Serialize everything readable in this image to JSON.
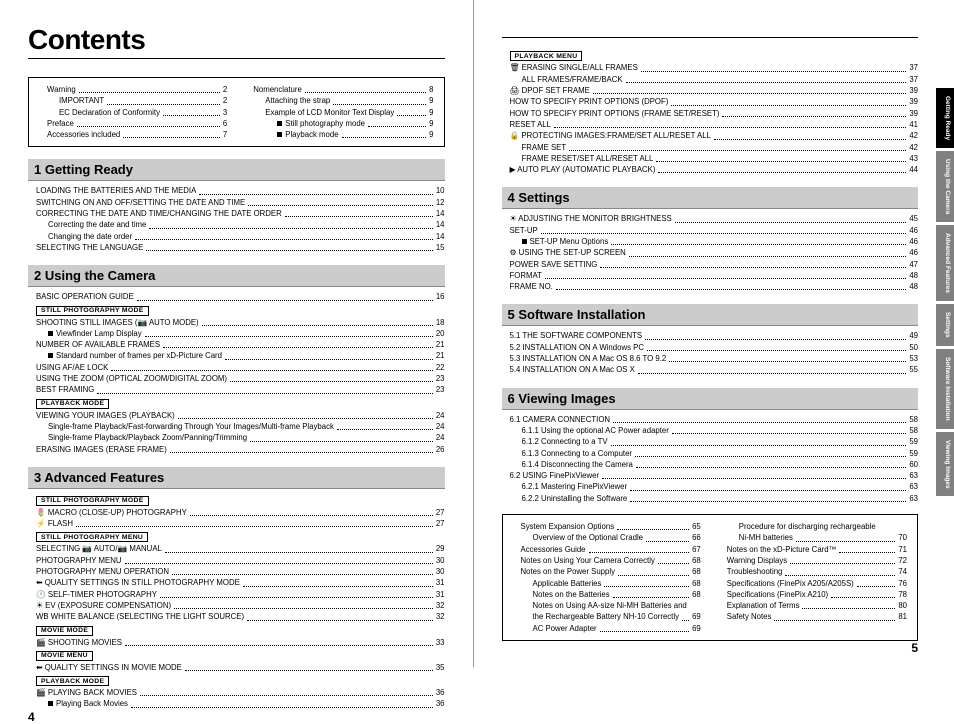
{
  "title": "Contents",
  "pageLeft": "4",
  "pageRight": "5",
  "topbox": [
    {
      "label": "Warning",
      "pg": "2"
    },
    {
      "label": "IMPORTANT",
      "pg": "2",
      "ind": 1
    },
    {
      "label": "EC Declaration of Conformity",
      "pg": "3",
      "ind": 1
    },
    {
      "label": "Preface",
      "pg": "6"
    },
    {
      "label": "Accessories included",
      "pg": "7"
    },
    {
      "label": "Nomenclature",
      "pg": "8"
    },
    {
      "label": "Attaching the strap",
      "pg": "9",
      "ind": 1
    },
    {
      "label": "Example of LCD Monitor Text Display",
      "pg": "9",
      "ind": 1
    },
    {
      "label": "Still photography mode",
      "pg": "9",
      "ind": 2,
      "blk": true
    },
    {
      "label": "Playback mode",
      "pg": "9",
      "ind": 2,
      "blk": true
    }
  ],
  "sections_left": [
    {
      "head": "1 Getting Ready",
      "items": [
        {
          "label": "LOADING THE BATTERIES AND THE MEDIA",
          "pg": "10"
        },
        {
          "label": "SWITCHING ON AND OFF/SETTING THE DATE AND TIME",
          "pg": "12"
        },
        {
          "label": "CORRECTING THE DATE AND TIME/CHANGING THE DATE ORDER",
          "pg": "14"
        },
        {
          "label": "Correcting the date and time",
          "pg": "14",
          "ind": 1
        },
        {
          "label": "Changing the date order",
          "pg": "14",
          "ind": 1
        },
        {
          "label": "SELECTING THE LANGUAGE",
          "pg": "15"
        }
      ]
    },
    {
      "head": "2 Using the Camera",
      "items": [
        {
          "label": "BASIC OPERATION GUIDE",
          "pg": "16"
        },
        {
          "tag": "STILL PHOTOGRAPHY MODE",
          "tagstyle": "outline"
        },
        {
          "label": "SHOOTING STILL IMAGES (📷 AUTO MODE)",
          "pg": "18"
        },
        {
          "label": "Viewfinder Lamp Display",
          "pg": "20",
          "ind": 1,
          "blk": true
        },
        {
          "label": "NUMBER OF AVAILABLE FRAMES",
          "pg": "21"
        },
        {
          "label": "Standard number of frames per xD-Picture Card",
          "pg": "21",
          "ind": 1,
          "blk": true
        },
        {
          "label": "USING AF/AE LOCK",
          "pg": "22"
        },
        {
          "label": "USING THE ZOOM (OPTICAL ZOOM/DIGITAL ZOOM)",
          "pg": "23"
        },
        {
          "label": "BEST FRAMING",
          "pg": "23"
        },
        {
          "tag": "PLAYBACK MODE",
          "tagstyle": "outline"
        },
        {
          "label": "VIEWING YOUR IMAGES (PLAYBACK)",
          "pg": "24"
        },
        {
          "label": "Single-frame Playback/Fast-forwarding Through Your Images/Multi-frame Playback",
          "pg": "24",
          "ind": 1
        },
        {
          "label": "Single-frame Playback/Playback Zoom/Panning/Trimming",
          "pg": "24",
          "ind": 1
        },
        {
          "label": "ERASING IMAGES (ERASE FRAME)",
          "pg": "26"
        }
      ]
    },
    {
      "head": "3 Advanced Features",
      "items": [
        {
          "tag": "STILL PHOTOGRAPHY MODE",
          "tagstyle": "outline"
        },
        {
          "label": "🌷  MACRO (CLOSE-UP) PHOTOGRAPHY",
          "pg": "27"
        },
        {
          "label": "⚡  FLASH",
          "pg": "27"
        },
        {
          "tag": "STILL PHOTOGRAPHY MENU",
          "tagstyle": "outline"
        },
        {
          "label": "SELECTING 📷 AUTO/📷 MANUAL",
          "pg": "29"
        },
        {
          "label": "PHOTOGRAPHY MENU",
          "pg": "30"
        },
        {
          "label": "PHOTOGRAPHY MENU OPERATION",
          "pg": "30"
        },
        {
          "label": "⬅  QUALITY SETTINGS IN STILL PHOTOGRAPHY MODE",
          "pg": "31"
        },
        {
          "label": "🕐  SELF-TIMER PHOTOGRAPHY",
          "pg": "31"
        },
        {
          "label": "☀  EV (EXPOSURE COMPENSATION)",
          "pg": "32"
        },
        {
          "label": "WB  WHITE BALANCE (SELECTING THE LIGHT SOURCE)",
          "pg": "32"
        },
        {
          "tag": "MOVIE MODE",
          "tagstyle": "outline"
        },
        {
          "label": "🎬  SHOOTING MOVIES",
          "pg": "33"
        },
        {
          "tag": "MOVIE MENU",
          "tagstyle": "outline"
        },
        {
          "label": "⬅  QUALITY SETTINGS IN MOVIE MODE",
          "pg": "35"
        },
        {
          "tag": "PLAYBACK MODE",
          "tagstyle": "outline"
        },
        {
          "label": "🎬  PLAYING BACK MOVIES",
          "pg": "36"
        },
        {
          "label": "Playing Back Movies",
          "pg": "36",
          "ind": 1,
          "blk": true
        }
      ]
    }
  ],
  "right_pre": {
    "items": [
      {
        "tag": "PLAYBACK MENU",
        "tagstyle": "outline"
      },
      {
        "label": "🗑  ERASING SINGLE/ALL FRAMES",
        "pg": "37"
      },
      {
        "label": "ALL FRAMES/FRAME/BACK",
        "pg": "37",
        "ind": 1
      },
      {
        "label": "🖨  DPOF SET FRAME",
        "pg": "39"
      },
      {
        "label": "HOW TO SPECIFY PRINT OPTIONS (DPOF)",
        "pg": "39"
      },
      {
        "label": "HOW TO SPECIFY PRINT OPTIONS (FRAME SET/RESET)",
        "pg": "39"
      },
      {
        "label": "RESET ALL",
        "pg": "41"
      },
      {
        "label": "🔒  PROTECTING IMAGES:FRAME/SET ALL/RESET ALL",
        "pg": "42"
      },
      {
        "label": "FRAME SET",
        "pg": "42",
        "ind": 1
      },
      {
        "label": "FRAME RESET/SET ALL/RESET ALL",
        "pg": "43",
        "ind": 1
      },
      {
        "label": "▶  AUTO PLAY (AUTOMATIC PLAYBACK)",
        "pg": "44"
      }
    ]
  },
  "sections_right": [
    {
      "head": "4 Settings",
      "items": [
        {
          "label": "☀  ADJUSTING THE MONITOR BRIGHTNESS",
          "pg": "45"
        },
        {
          "label": "SET-UP",
          "pg": "46"
        },
        {
          "label": "SET-UP Menu Options",
          "pg": "46",
          "ind": 1,
          "blk": true
        },
        {
          "label": "⚙  USING THE SET-UP SCREEN",
          "pg": "46"
        },
        {
          "label": "POWER SAVE SETTING",
          "pg": "47"
        },
        {
          "label": "FORMAT",
          "pg": "48"
        },
        {
          "label": "FRAME NO.",
          "pg": "48"
        }
      ]
    },
    {
      "head": "5 Software Installation",
      "items": [
        {
          "label": "5.1 THE SOFTWARE COMPONENTS",
          "pg": "49"
        },
        {
          "label": "5.2 INSTALLATION ON A Windows PC",
          "pg": "50"
        },
        {
          "label": "5.3 INSTALLATION ON A Mac OS 8.6 TO 9.2",
          "pg": "53"
        },
        {
          "label": "5.4 INSTALLATION ON A Mac OS X",
          "pg": "55"
        }
      ]
    },
    {
      "head": "6 Viewing Images",
      "items": [
        {
          "label": "6.1 CAMERA CONNECTION",
          "pg": "58"
        },
        {
          "label": "6.1.1 Using the optional AC Power adapter",
          "pg": "58",
          "ind": 1
        },
        {
          "label": "6.1.2 Connecting to a TV",
          "pg": "59",
          "ind": 1
        },
        {
          "label": "6.1.3 Connecting to a Computer",
          "pg": "59",
          "ind": 1
        },
        {
          "label": "6.1.4 Disconnecting the Camera",
          "pg": "60",
          "ind": 1
        },
        {
          "label": "6.2 USING FinePixViewer",
          "pg": "63"
        },
        {
          "label": "6.2.1 Mastering FinePixViewer",
          "pg": "63",
          "ind": 1
        },
        {
          "label": "6.2.2 Uninstalling the Software",
          "pg": "63",
          "ind": 1
        }
      ]
    }
  ],
  "bottombox": [
    {
      "label": "System Expansion Options",
      "pg": "65"
    },
    {
      "label": "Overview of the Optional Cradle",
      "pg": "66",
      "ind": 1
    },
    {
      "label": "Accessories Guide",
      "pg": "67"
    },
    {
      "label": "Notes on Using Your Camera Correctly",
      "pg": "68"
    },
    {
      "label": "Notes on the Power Supply",
      "pg": "68"
    },
    {
      "label": "Applicable Batteries",
      "pg": "68",
      "ind": 1
    },
    {
      "label": "Notes on the Batteries",
      "pg": "68",
      "ind": 1
    },
    {
      "label": "Notes on Using AA-size Ni-MH Batteries and",
      "ind": 1
    },
    {
      "label": "the Rechargeable Battery NH-10 Correctly",
      "pg": "69",
      "ind": 1
    },
    {
      "label": "AC Power Adapter",
      "pg": "69",
      "ind": 1
    },
    {
      "label": "Procedure for discharging rechargeable",
      "ind": 1
    },
    {
      "label": "Ni-MH batteries",
      "pg": "70",
      "ind": 1
    },
    {
      "label": "Notes on the xD-Picture Card™",
      "pg": "71"
    },
    {
      "label": "Warning Displays",
      "pg": "72"
    },
    {
      "label": "Troubleshooting",
      "pg": "74"
    },
    {
      "label": "Specifications (FinePix A205/A205S)",
      "pg": "76"
    },
    {
      "label": "Specifications (FinePix A210)",
      "pg": "78"
    },
    {
      "label": "Explanation of Terms",
      "pg": "80"
    },
    {
      "label": "Safety Notes",
      "pg": "81"
    }
  ],
  "tabs": [
    {
      "label": "Getting\nReady",
      "cls": ""
    },
    {
      "label": "Using\nthe Camera",
      "cls": "gray"
    },
    {
      "label": "Advanced\nFeatures",
      "cls": "gray"
    },
    {
      "label": "Settings",
      "cls": "gray"
    },
    {
      "label": "Software\nInstallation",
      "cls": "gray"
    },
    {
      "label": "Viewing Images",
      "cls": "gray"
    }
  ]
}
